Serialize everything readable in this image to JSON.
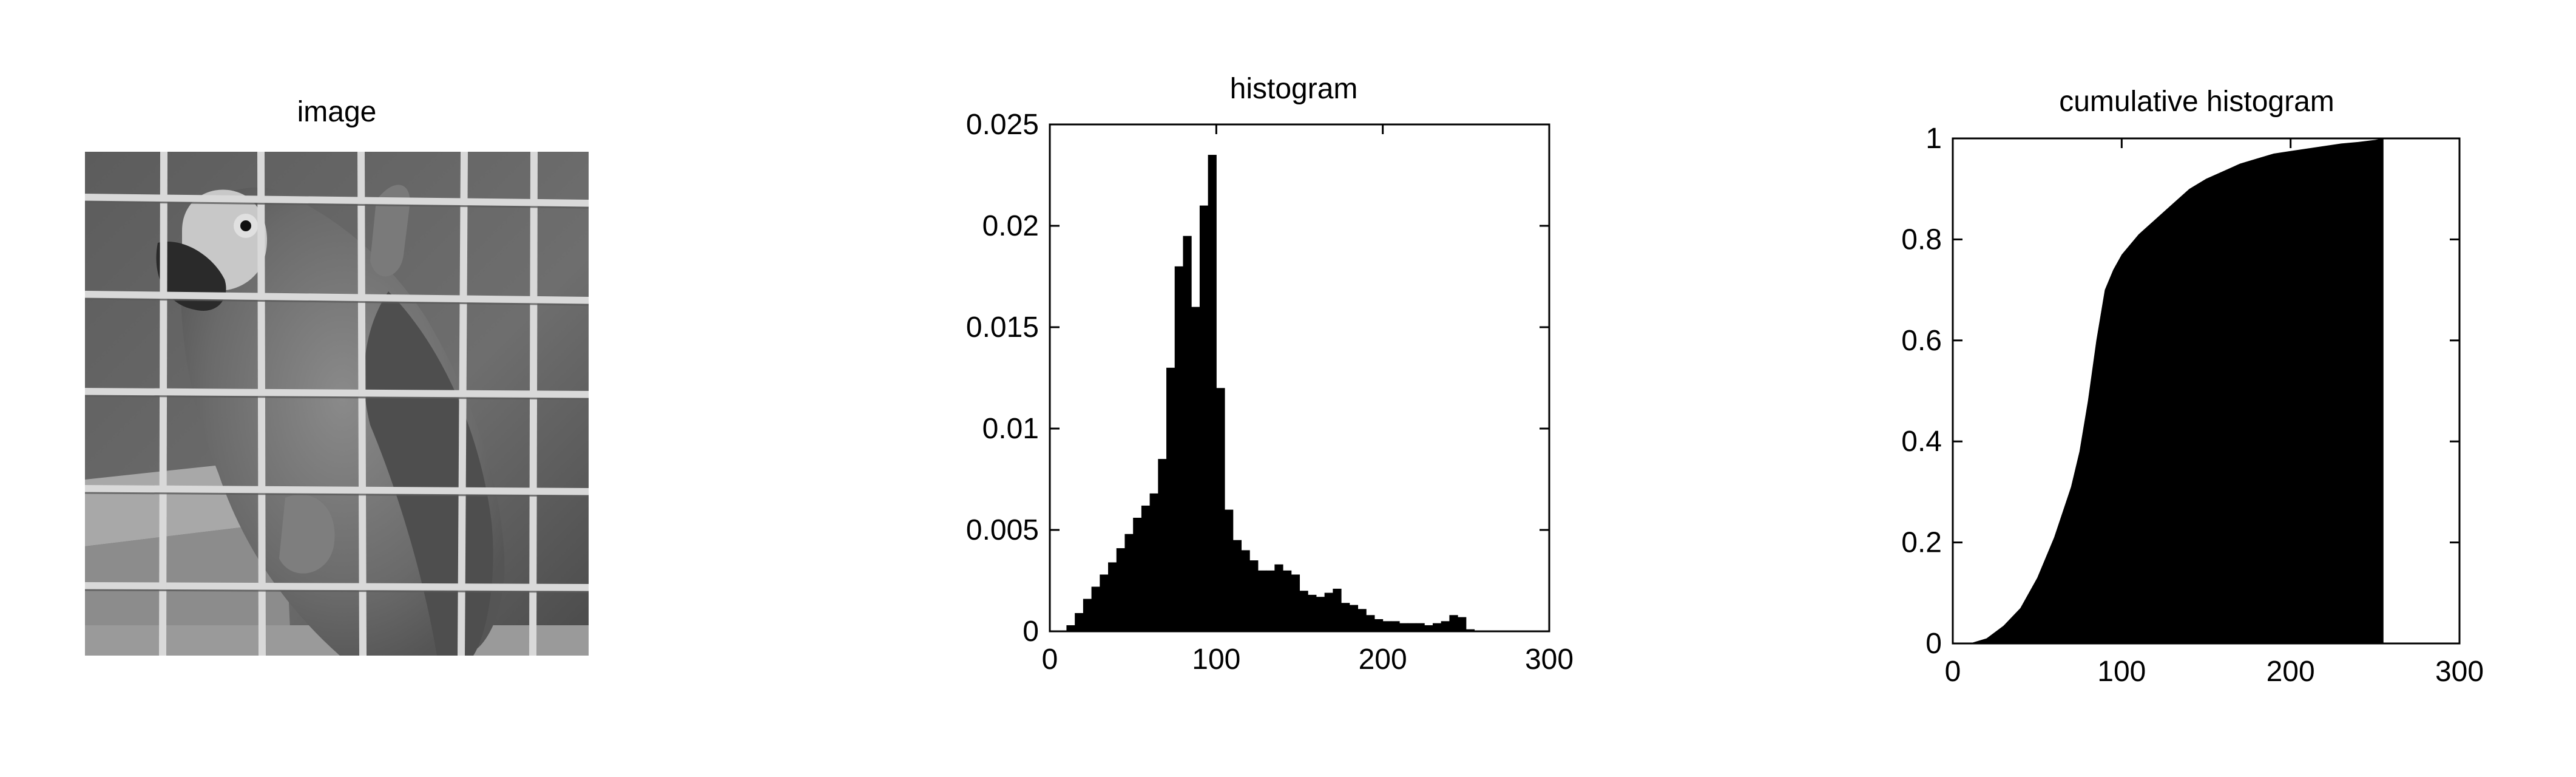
{
  "image_panel": {
    "title": "image",
    "subject_icon": "parrot-in-cage-photo"
  },
  "chart_data": [
    {
      "type": "bar",
      "title": "histogram",
      "xlabel": "",
      "ylabel": "",
      "xlim": [
        0,
        300
      ],
      "ylim": [
        0,
        0.025
      ],
      "xticks": [
        0,
        100,
        200,
        300
      ],
      "yticks": [
        0,
        0.005,
        0.01,
        0.015,
        0.02,
        0.025
      ],
      "xtick_labels": [
        "0",
        "100",
        "200",
        "300"
      ],
      "ytick_labels": [
        "0",
        "0.005",
        "0.01",
        "0.015",
        "0.02",
        "0.025"
      ],
      "grid": false,
      "bar_color": "#000000",
      "x": [
        0,
        5,
        10,
        15,
        20,
        25,
        30,
        35,
        40,
        45,
        50,
        55,
        60,
        65,
        70,
        75,
        80,
        85,
        90,
        95,
        100,
        105,
        110,
        115,
        120,
        125,
        130,
        135,
        140,
        145,
        150,
        155,
        160,
        165,
        170,
        175,
        180,
        185,
        190,
        195,
        200,
        205,
        210,
        215,
        220,
        225,
        230,
        235,
        240,
        245,
        250,
        255
      ],
      "values": [
        0,
        0,
        0.0003,
        0.0009,
        0.0016,
        0.0022,
        0.0028,
        0.0034,
        0.0041,
        0.0048,
        0.0056,
        0.0062,
        0.0068,
        0.0085,
        0.013,
        0.018,
        0.0195,
        0.016,
        0.021,
        0.0235,
        0.012,
        0.006,
        0.0045,
        0.004,
        0.0035,
        0.003,
        0.003,
        0.0033,
        0.003,
        0.0028,
        0.002,
        0.0018,
        0.0017,
        0.0019,
        0.0021,
        0.0014,
        0.0013,
        0.0011,
        0.0008,
        0.0006,
        0.0005,
        0.0005,
        0.0004,
        0.0004,
        0.0004,
        0.0003,
        0.0004,
        0.0005,
        0.0008,
        0.0007,
        0.0001,
        0
      ]
    },
    {
      "type": "area",
      "title": "cumulative histogram",
      "xlabel": "",
      "ylabel": "",
      "xlim": [
        0,
        300
      ],
      "ylim": [
        0,
        1
      ],
      "xticks": [
        0,
        100,
        200,
        300
      ],
      "yticks": [
        0,
        0.2,
        0.4,
        0.6,
        0.8,
        1
      ],
      "xtick_labels": [
        "0",
        "100",
        "200",
        "300"
      ],
      "ytick_labels": [
        "0",
        "0.2",
        "0.4",
        "0.6",
        "0.8",
        "1"
      ],
      "grid": false,
      "fill_color": "#000000",
      "x": [
        0,
        10,
        20,
        30,
        40,
        50,
        60,
        70,
        75,
        80,
        85,
        90,
        95,
        100,
        110,
        120,
        130,
        140,
        150,
        160,
        170,
        180,
        190,
        200,
        210,
        220,
        230,
        240,
        250,
        255
      ],
      "values": [
        0,
        0,
        0.01,
        0.035,
        0.07,
        0.13,
        0.21,
        0.31,
        0.38,
        0.48,
        0.6,
        0.7,
        0.74,
        0.77,
        0.81,
        0.84,
        0.87,
        0.9,
        0.92,
        0.935,
        0.95,
        0.96,
        0.97,
        0.975,
        0.98,
        0.985,
        0.99,
        0.993,
        0.997,
        1
      ]
    }
  ]
}
